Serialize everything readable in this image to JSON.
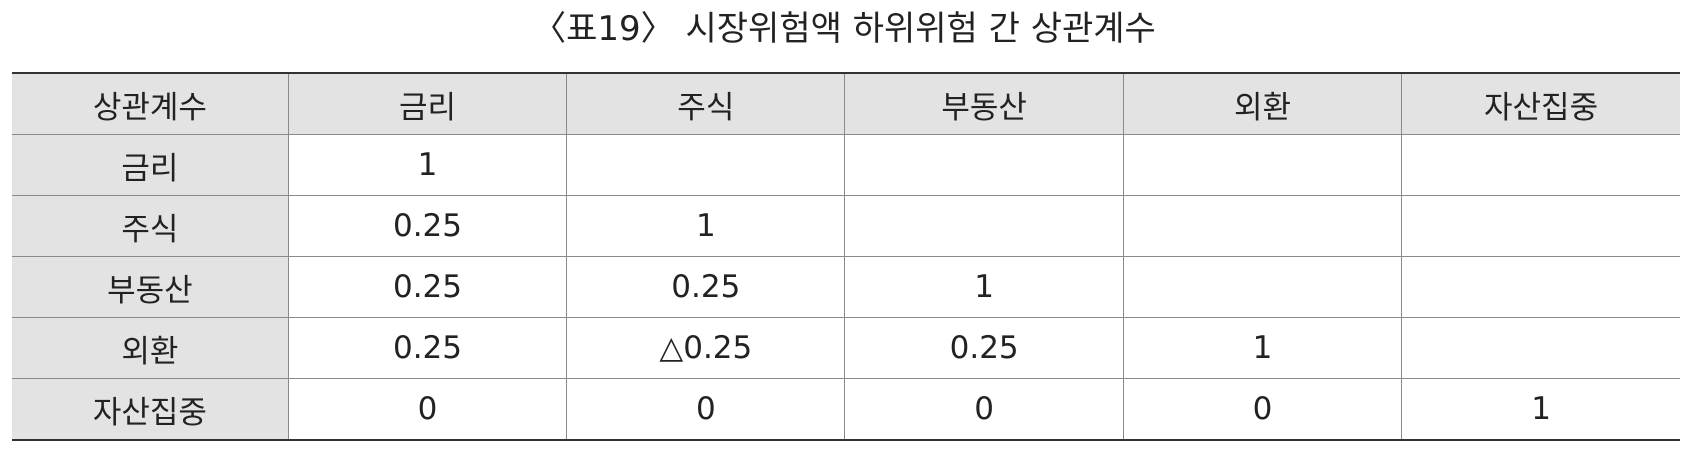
{
  "title": "〈표19〉 시장위험액 하위위험 간 상관계수",
  "table": {
    "corner": "상관계수",
    "columns": [
      "금리",
      "주식",
      "부동산",
      "외환",
      "자산집중"
    ],
    "rows": [
      {
        "label": "금리",
        "cells": [
          "1",
          "",
          "",
          "",
          ""
        ]
      },
      {
        "label": "주식",
        "cells": [
          "0.25",
          "1",
          "",
          "",
          ""
        ]
      },
      {
        "label": "부동산",
        "cells": [
          "0.25",
          "0.25",
          "1",
          "",
          ""
        ]
      },
      {
        "label": "외환",
        "cells": [
          "0.25",
          "△0.25",
          "0.25",
          "1",
          ""
        ]
      },
      {
        "label": "자산집중",
        "cells": [
          "0",
          "0",
          "0",
          "0",
          "1"
        ]
      }
    ]
  }
}
